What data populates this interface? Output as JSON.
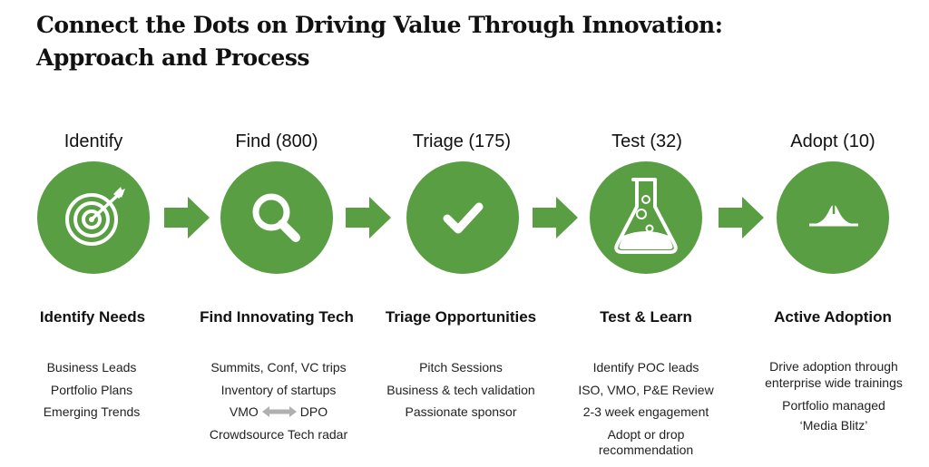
{
  "title": {
    "line1": "Connect the Dots on Driving Value Through Innovation:",
    "line2": "Approach and Process"
  },
  "colors": {
    "circle": "#5a9e44",
    "arrow": "#5a9e44",
    "double_arrow": "#b0b0b0"
  },
  "stages": [
    {
      "label": "Identify",
      "icon": "target-icon",
      "heading": "Identify Needs",
      "items": [
        "Business Leads",
        "Portfolio Plans",
        "Emerging Trends"
      ]
    },
    {
      "label": "Find (800)",
      "icon": "magnifier-icon",
      "heading": "Find Innovating Tech",
      "items": [
        "Summits, Conf, VC trips",
        "Inventory of startups",
        "Crowdsource Tech radar"
      ],
      "vmo": {
        "left": "VMO",
        "right": "DPO"
      }
    },
    {
      "label": "Triage (175)",
      "icon": "checkmark-icon",
      "heading": "Triage Opportunities",
      "items": [
        "Pitch Sessions",
        "Business & tech validation",
        "Passionate sponsor"
      ]
    },
    {
      "label": "Test (32)",
      "icon": "flask-icon",
      "heading": "Test & Learn",
      "items": [
        "Identify POC leads",
        "ISO, VMO, P&E Review",
        "2-3 week engagement",
        "Adopt or drop recommendation"
      ]
    },
    {
      "label": "Adopt (10)",
      "icon": "bell-curve-icon",
      "heading": "Active Adoption",
      "items": [
        "Drive adoption through enterprise wide trainings",
        "Portfolio managed",
        "‘Media Blitz’"
      ]
    }
  ]
}
